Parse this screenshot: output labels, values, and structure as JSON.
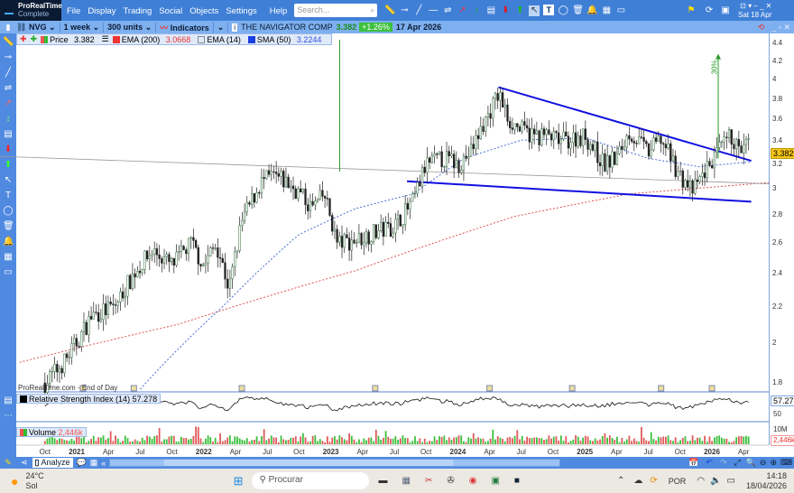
{
  "app": {
    "name": "ProRealTime",
    "edition": "Complete"
  },
  "menu": [
    "File",
    "Display",
    "Trading",
    "Social",
    "Objects",
    "Settings",
    "Help"
  ],
  "search": {
    "placeholder": "Search..."
  },
  "date_top": "Sat 18 Apr",
  "toolbar2": {
    "symbol": "NVG",
    "period": "1 week",
    "units": "300 units",
    "indicators": "Indicators",
    "instrument": "THE NAVIGATOR COMP",
    "price": "3.382",
    "change": "+1.26%",
    "date": "17 Apr 2026"
  },
  "legend": {
    "price_label": "Price",
    "price": "3.382",
    "ema200_label": "EMA (200)",
    "ema200": "3.0668",
    "ema14_label": "EMA (14)",
    "sma50_label": "SMA (50)",
    "sma50": "3.2244"
  },
  "watermark": "ProRealTime.com - End of Day",
  "annotation": "30%",
  "rsi": {
    "label": "Relative Strength Index (14)",
    "value": "57.278",
    "level": "50"
  },
  "volume": {
    "label": "Volume",
    "value": "2,446k",
    "scale": "10M"
  },
  "price_axis": [
    "4.4",
    "4.2",
    "4",
    "3.8",
    "3.6",
    "3.4",
    "3.2",
    "3",
    "2.8",
    "2.6",
    "2.4",
    "2.2",
    "2",
    "1.8"
  ],
  "time_axis": [
    {
      "t": "Oct",
      "y": 2020.75
    },
    {
      "t": "2021",
      "y": 2021,
      "b": 1
    },
    {
      "t": "Apr",
      "y": 2021.25
    },
    {
      "t": "Jul",
      "y": 2021.5
    },
    {
      "t": "Oct",
      "y": 2021.75
    },
    {
      "t": "2022",
      "y": 2022,
      "b": 1
    },
    {
      "t": "Apr",
      "y": 2022.25
    },
    {
      "t": "Jul",
      "y": 2022.5
    },
    {
      "t": "Oct",
      "y": 2022.75
    },
    {
      "t": "2023",
      "y": 2023,
      "b": 1
    },
    {
      "t": "Apr",
      "y": 2023.25
    },
    {
      "t": "Jul",
      "y": 2023.5
    },
    {
      "t": "Oct",
      "y": 2023.75
    },
    {
      "t": "2024",
      "y": 2024,
      "b": 1
    },
    {
      "t": "Apr",
      "y": 2024.25
    },
    {
      "t": "Jul",
      "y": 2024.5
    },
    {
      "t": "Oct",
      "y": 2024.75
    },
    {
      "t": "2025",
      "y": 2025,
      "b": 1
    },
    {
      "t": "Apr",
      "y": 2025.25
    },
    {
      "t": "Jul",
      "y": 2025.5
    },
    {
      "t": "Oct",
      "y": 2025.75
    },
    {
      "t": "2026",
      "y": 2026,
      "b": 1
    },
    {
      "t": "Apr",
      "y": 2026.25
    }
  ],
  "bottom": {
    "analyze": "Analyze"
  },
  "taskbar": {
    "temp": "24°C",
    "weather": "Sol",
    "search": "Procurar",
    "lang": "POR",
    "time": "14:18",
    "date": "18/04/2026"
  },
  "colors": {
    "up": "#2e6b3a",
    "down": "#222",
    "ema200": "#e05050",
    "sma50": "#4a6fd0",
    "trend": "#1010e0",
    "accent": "#3f7fd6"
  },
  "chart_data": {
    "type": "candlestick",
    "close_path": [
      [
        2020.75,
        1.8
      ],
      [
        2020.9,
        1.9
      ],
      [
        2021.0,
        2.0
      ],
      [
        2021.12,
        2.15
      ],
      [
        2021.3,
        2.2
      ],
      [
        2021.45,
        2.4
      ],
      [
        2021.6,
        2.55
      ],
      [
        2021.75,
        2.45
      ],
      [
        2021.9,
        2.6
      ],
      [
        2022.0,
        2.45
      ],
      [
        2022.1,
        2.6
      ],
      [
        2022.2,
        2.3
      ],
      [
        2022.3,
        2.75
      ],
      [
        2022.45,
        3.05
      ],
      [
        2022.55,
        3.1
      ],
      [
        2022.65,
        3.05
      ],
      [
        2022.75,
        2.97
      ],
      [
        2022.85,
        2.85
      ],
      [
        2022.95,
        2.95
      ],
      [
        2023.05,
        2.6
      ],
      [
        2023.2,
        2.62
      ],
      [
        2023.3,
        2.66
      ],
      [
        2023.5,
        2.72
      ],
      [
        2023.65,
        2.9
      ],
      [
        2023.75,
        3.2
      ],
      [
        2023.9,
        3.25
      ],
      [
        2024.0,
        3.2
      ],
      [
        2024.1,
        3.3
      ],
      [
        2024.22,
        3.6
      ],
      [
        2024.32,
        3.85
      ],
      [
        2024.4,
        3.6
      ],
      [
        2024.5,
        3.5
      ],
      [
        2024.6,
        3.45
      ],
      [
        2024.7,
        3.45
      ],
      [
        2024.8,
        3.4
      ],
      [
        2025.0,
        3.45
      ],
      [
        2025.15,
        3.2
      ],
      [
        2025.25,
        3.25
      ],
      [
        2025.35,
        3.48
      ],
      [
        2025.5,
        3.3
      ],
      [
        2025.6,
        3.42
      ],
      [
        2025.75,
        3.1
      ],
      [
        2025.85,
        2.98
      ],
      [
        2025.95,
        3.15
      ],
      [
        2026.05,
        3.3
      ],
      [
        2026.15,
        3.45
      ],
      [
        2026.22,
        3.3
      ],
      [
        2026.29,
        3.38
      ]
    ],
    "ema200": [
      [
        2020.55,
        1.9
      ],
      [
        2021.8,
        2.1
      ],
      [
        2023.2,
        2.42
      ],
      [
        2024.45,
        2.79
      ],
      [
        2025.35,
        2.96
      ],
      [
        2026.45,
        3.05
      ]
    ],
    "sma50": [
      [
        2021.5,
        1.77
      ],
      [
        2022.15,
        2.2
      ],
      [
        2022.75,
        2.66
      ],
      [
        2023.2,
        2.85
      ],
      [
        2023.65,
        2.96
      ],
      [
        2024.05,
        3.25
      ],
      [
        2024.5,
        3.41
      ],
      [
        2025.0,
        3.43
      ],
      [
        2025.5,
        3.25
      ],
      [
        2025.9,
        3.18
      ],
      [
        2026.3,
        3.22
      ]
    ],
    "trendlines": [
      [
        [
          2024.32,
          3.92
        ],
        [
          2026.31,
          3.23
        ]
      ],
      [
        [
          2023.6,
          3.06
        ],
        [
          2026.31,
          2.9
        ]
      ],
      [
        [
          2020.35,
          3.27
        ],
        [
          2026.45,
          3.04
        ]
      ]
    ],
    "target_arrow": {
      "x": 2026.05,
      "from": 3.25,
      "to": 4.27,
      "label": "30%"
    },
    "vertical_line": 2023.07,
    "ylim": [
      1.78,
      4.5
    ],
    "scale": "log"
  }
}
